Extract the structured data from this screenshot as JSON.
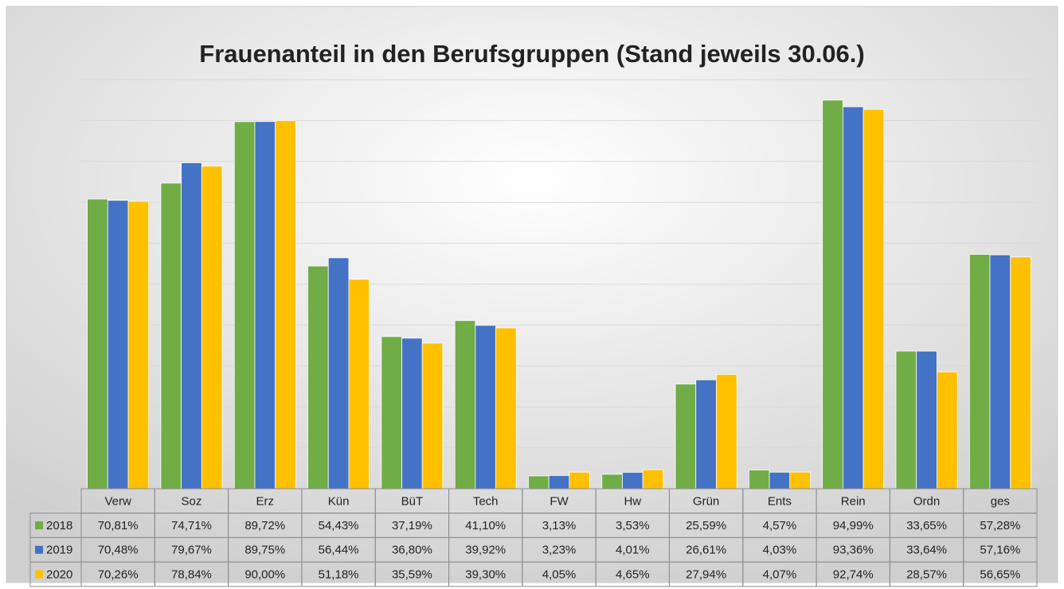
{
  "chart_data": {
    "type": "bar",
    "title": "Frauenanteil in den Berufsgruppen (Stand jeweils 30.06.)",
    "categories": [
      "Verw",
      "Soz",
      "Erz",
      "Kün",
      "BüT",
      "Tech",
      "FW",
      "Hw",
      "Grün",
      "Ents",
      "Rein",
      "Ordn",
      "ges"
    ],
    "series": [
      {
        "name": "2018",
        "color": "#70ad47",
        "values": [
          70.81,
          74.71,
          89.72,
          54.43,
          37.19,
          41.1,
          3.13,
          3.53,
          25.59,
          4.57,
          94.99,
          33.65,
          57.28
        ],
        "value_labels": [
          "70,81%",
          "74,71%",
          "89,72%",
          "54,43%",
          "37,19%",
          "41,10%",
          "3,13%",
          "3,53%",
          "25,59%",
          "4,57%",
          "94,99%",
          "33,65%",
          "57,28%"
        ]
      },
      {
        "name": "2019",
        "color": "#4472c4",
        "values": [
          70.48,
          79.67,
          89.75,
          56.44,
          36.8,
          39.92,
          3.23,
          4.01,
          26.61,
          4.03,
          93.36,
          33.64,
          57.16
        ],
        "value_labels": [
          "70,48%",
          "79,67%",
          "89,75%",
          "56,44%",
          "36,80%",
          "39,92%",
          "3,23%",
          "4,01%",
          "26,61%",
          "4,03%",
          "93,36%",
          "33,64%",
          "57,16%"
        ]
      },
      {
        "name": "2020",
        "color": "#ffc000",
        "values": [
          70.26,
          78.84,
          90.0,
          51.18,
          35.59,
          39.3,
          4.05,
          4.65,
          27.94,
          4.07,
          92.74,
          28.57,
          56.65
        ],
        "value_labels": [
          "70,26%",
          "78,84%",
          "90,00%",
          "51,18%",
          "35,59%",
          "39,30%",
          "4,05%",
          "4,65%",
          "27,94%",
          "4,07%",
          "92,74%",
          "28,57%",
          "56,65%"
        ]
      }
    ],
    "ylim": [
      0,
      100
    ],
    "yticks": [
      0,
      10,
      20,
      30,
      40,
      50,
      60,
      70,
      80,
      90,
      100
    ],
    "grid": true
  }
}
